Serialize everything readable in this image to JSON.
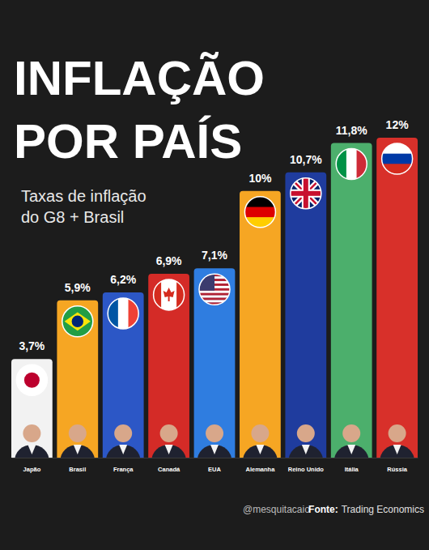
{
  "chart_data": {
    "type": "bar",
    "title": [
      "INFLAÇÃO",
      "POR PAÍS"
    ],
    "subtitle": [
      "Taxas de inflação",
      "do G8 + Brasil"
    ],
    "categories": [
      "Japão",
      "Brasil",
      "França",
      "Canadá",
      "EUA",
      "Alemanha",
      "Reino Unido",
      "Itália",
      "Rússia"
    ],
    "values": [
      3.7,
      5.9,
      6.2,
      6.9,
      7.1,
      10,
      10.7,
      11.8,
      12
    ],
    "value_labels": [
      "3,7%",
      "5,9%",
      "6,2%",
      "6,9%",
      "7,1%",
      "10%",
      "10,7%",
      "11,8%",
      "12%"
    ],
    "colors": [
      "#f2f2f2",
      "#f6a623",
      "#2c57c6",
      "#d42b27",
      "#2f7de0",
      "#f6a623",
      "#1f3c9e",
      "#4caf6c",
      "#d8302a"
    ],
    "ylim": [
      0,
      12
    ],
    "data_labels": true,
    "tick_labels": "x",
    "grid": false,
    "credit": "@mesquitacaio",
    "source_label": "Fonte:",
    "source": "Trading Economics"
  }
}
